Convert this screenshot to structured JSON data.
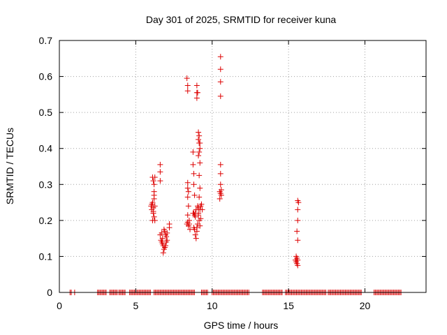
{
  "chart_data": {
    "type": "scatter",
    "title": "Day 301 of 2025, SRMTID for receiver kuna",
    "xlabel": "GPS time / hours",
    "ylabel": "SRMTID / TECUs",
    "xlim": [
      0,
      24
    ],
    "ylim": [
      0,
      0.7
    ],
    "xticks": [
      0,
      5,
      10,
      15,
      20
    ],
    "yticks": [
      0,
      0.1,
      0.2,
      0.3,
      0.4,
      0.5,
      0.6,
      0.7
    ],
    "xtick_labels": [
      "0",
      "5",
      "10",
      "15",
      "20"
    ],
    "ytick_labels": [
      "0",
      "0.1",
      "0.2",
      "0.3",
      "0.4",
      "0.5",
      "0.6",
      "0.7"
    ],
    "grid": true,
    "marker": "+",
    "color": "#dd0000",
    "zero_segments": [
      [
        0.7,
        0.8
      ],
      [
        1.0,
        1.05
      ],
      [
        2.5,
        3.1
      ],
      [
        3.3,
        3.8
      ],
      [
        3.9,
        4.3
      ],
      [
        4.6,
        6.0
      ],
      [
        6.2,
        8.9
      ],
      [
        9.3,
        9.7
      ],
      [
        10.0,
        12.4
      ],
      [
        13.3,
        14.6
      ],
      [
        14.8,
        17.5
      ],
      [
        17.6,
        19.8
      ],
      [
        20.6,
        22.4
      ]
    ],
    "zero_step": 0.08,
    "points": [
      [
        6.0,
        0.24
      ],
      [
        6.05,
        0.23
      ],
      [
        6.1,
        0.25
      ],
      [
        6.15,
        0.22
      ],
      [
        6.2,
        0.21
      ],
      [
        6.1,
        0.2
      ],
      [
        6.25,
        0.2
      ],
      [
        6.05,
        0.245
      ],
      [
        6.15,
        0.235
      ],
      [
        6.2,
        0.26
      ],
      [
        6.2,
        0.28
      ],
      [
        6.2,
        0.3
      ],
      [
        6.15,
        0.31
      ],
      [
        6.25,
        0.32
      ],
      [
        6.1,
        0.32
      ],
      [
        6.2,
        0.27
      ],
      [
        6.25,
        0.24
      ],
      [
        6.15,
        0.225
      ],
      [
        6.6,
        0.355
      ],
      [
        6.6,
        0.335
      ],
      [
        6.6,
        0.31
      ],
      [
        6.6,
        0.16
      ],
      [
        6.65,
        0.145
      ],
      [
        6.7,
        0.14
      ],
      [
        6.75,
        0.135
      ],
      [
        6.8,
        0.13
      ],
      [
        6.85,
        0.12
      ],
      [
        6.9,
        0.125
      ],
      [
        6.8,
        0.11
      ],
      [
        6.75,
        0.15
      ],
      [
        6.9,
        0.17
      ],
      [
        6.95,
        0.16
      ],
      [
        7.0,
        0.155
      ],
      [
        7.05,
        0.145
      ],
      [
        6.95,
        0.13
      ],
      [
        7.0,
        0.14
      ],
      [
        6.7,
        0.165
      ],
      [
        6.85,
        0.175
      ],
      [
        7.05,
        0.165
      ],
      [
        7.2,
        0.19
      ],
      [
        7.2,
        0.18
      ],
      [
        8.35,
        0.595
      ],
      [
        8.4,
        0.575
      ],
      [
        8.4,
        0.56
      ],
      [
        8.4,
        0.305
      ],
      [
        8.4,
        0.29
      ],
      [
        8.45,
        0.28
      ],
      [
        8.4,
        0.265
      ],
      [
        8.45,
        0.24
      ],
      [
        8.4,
        0.215
      ],
      [
        8.4,
        0.195
      ],
      [
        8.45,
        0.185
      ],
      [
        8.5,
        0.19
      ],
      [
        8.55,
        0.175
      ],
      [
        8.5,
        0.2
      ],
      [
        8.35,
        0.19
      ],
      [
        8.75,
        0.39
      ],
      [
        8.75,
        0.355
      ],
      [
        8.8,
        0.33
      ],
      [
        8.8,
        0.3
      ],
      [
        8.85,
        0.27
      ],
      [
        8.75,
        0.22
      ],
      [
        8.8,
        0.22
      ],
      [
        8.85,
        0.215
      ],
      [
        8.9,
        0.21
      ],
      [
        8.8,
        0.18
      ],
      [
        8.85,
        0.175
      ],
      [
        8.9,
        0.16
      ],
      [
        8.95,
        0.15
      ],
      [
        9.0,
        0.17
      ],
      [
        8.9,
        0.22
      ],
      [
        8.95,
        0.23
      ],
      [
        9.0,
        0.575
      ],
      [
        9.0,
        0.555
      ],
      [
        9.05,
        0.555
      ],
      [
        9.0,
        0.54
      ],
      [
        9.1,
        0.445
      ],
      [
        9.15,
        0.435
      ],
      [
        9.1,
        0.425
      ],
      [
        9.15,
        0.415
      ],
      [
        9.2,
        0.415
      ],
      [
        9.2,
        0.4
      ],
      [
        9.15,
        0.39
      ],
      [
        9.1,
        0.38
      ],
      [
        9.2,
        0.36
      ],
      [
        9.15,
        0.325
      ],
      [
        9.2,
        0.29
      ],
      [
        9.15,
        0.265
      ],
      [
        9.05,
        0.24
      ],
      [
        9.1,
        0.235
      ],
      [
        9.2,
        0.23
      ],
      [
        9.25,
        0.24
      ],
      [
        9.3,
        0.245
      ],
      [
        9.35,
        0.23
      ],
      [
        9.1,
        0.215
      ],
      [
        9.15,
        0.2
      ],
      [
        9.05,
        0.19
      ],
      [
        9.2,
        0.185
      ],
      [
        9.0,
        0.18
      ],
      [
        9.1,
        0.22
      ],
      [
        9.25,
        0.205
      ],
      [
        10.55,
        0.655
      ],
      [
        10.55,
        0.62
      ],
      [
        10.55,
        0.585
      ],
      [
        10.55,
        0.545
      ],
      [
        10.55,
        0.355
      ],
      [
        10.55,
        0.33
      ],
      [
        10.55,
        0.3
      ],
      [
        10.5,
        0.28
      ],
      [
        10.55,
        0.275
      ],
      [
        10.6,
        0.27
      ],
      [
        10.5,
        0.26
      ],
      [
        10.6,
        0.285
      ],
      [
        15.6,
        0.255
      ],
      [
        15.65,
        0.25
      ],
      [
        15.6,
        0.23
      ],
      [
        15.6,
        0.2
      ],
      [
        15.55,
        0.17
      ],
      [
        15.6,
        0.145
      ],
      [
        15.5,
        0.1
      ],
      [
        15.55,
        0.095
      ],
      [
        15.6,
        0.09
      ],
      [
        15.5,
        0.085
      ],
      [
        15.55,
        0.08
      ],
      [
        15.6,
        0.075
      ],
      [
        15.45,
        0.09
      ]
    ]
  }
}
